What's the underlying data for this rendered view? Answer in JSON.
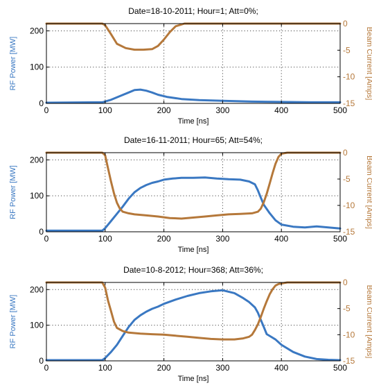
{
  "colors": {
    "rf_power": "#3a78c2",
    "beam_current": "#b5783a",
    "grid": "#4a4a4a"
  },
  "chart_data": [
    {
      "type": "line",
      "title": "Date=18-10-2011; Hour=1; Att=0%;",
      "xlabel": "Time [ns]",
      "ylabel_left": "RF Power [MW]",
      "ylabel_right": "Beam Current [Amps]",
      "xlim": [
        0,
        500
      ],
      "ylim_left": [
        0,
        220
      ],
      "ylim_right": [
        -15,
        0
      ],
      "x_ticks": [
        "0",
        "100",
        "200",
        "300",
        "400",
        "500"
      ],
      "y_ticks_left": [
        "0",
        "100",
        "200"
      ],
      "y_ticks_right": [
        "0",
        "-5",
        "-10",
        "-15"
      ],
      "grid": true,
      "series": [
        {
          "name": "RF Power",
          "axis": "left",
          "x": [
            0,
            95,
            110,
            125,
            140,
            150,
            160,
            170,
            180,
            190,
            205,
            230,
            260,
            300,
            350,
            400,
            450,
            500
          ],
          "y": [
            2,
            3,
            10,
            20,
            30,
            37,
            38,
            35,
            30,
            24,
            18,
            12,
            9,
            7,
            5,
            4,
            3,
            3
          ]
        },
        {
          "name": "Beam Current",
          "axis": "right",
          "x": [
            0,
            95,
            100,
            110,
            120,
            135,
            150,
            165,
            180,
            190,
            200,
            210,
            220,
            235,
            500
          ],
          "y": [
            0,
            0,
            -0.3,
            -2.0,
            -3.8,
            -4.6,
            -4.9,
            -4.9,
            -4.8,
            -4.2,
            -3.0,
            -1.6,
            -0.5,
            0,
            0
          ]
        }
      ]
    },
    {
      "type": "line",
      "title": "Date=16-11-2011; Hour=65; Att=54%;",
      "xlabel": "Time [ns]",
      "ylabel_left": "RF Power [MW]",
      "ylabel_right": "Beam Current [Amps]",
      "xlim": [
        0,
        500
      ],
      "ylim_left": [
        0,
        220
      ],
      "ylim_right": [
        -15,
        0
      ],
      "x_ticks": [
        "0",
        "100",
        "200",
        "300",
        "400",
        "500"
      ],
      "y_ticks_left": [
        "0",
        "100",
        "200"
      ],
      "y_ticks_right": [
        "0",
        "-5",
        "-10",
        "-15"
      ],
      "grid": true,
      "series": [
        {
          "name": "RF Power",
          "axis": "left",
          "x": [
            0,
            95,
            100,
            110,
            120,
            130,
            140,
            150,
            160,
            170,
            180,
            190,
            200,
            215,
            230,
            250,
            270,
            290,
            310,
            330,
            345,
            355,
            360,
            365,
            370,
            380,
            390,
            400,
            420,
            440,
            460,
            480,
            500
          ],
          "y": [
            3,
            3,
            10,
            30,
            50,
            70,
            92,
            110,
            122,
            130,
            136,
            140,
            145,
            148,
            150,
            150,
            151,
            148,
            146,
            145,
            140,
            132,
            115,
            95,
            75,
            52,
            32,
            20,
            14,
            12,
            15,
            12,
            9
          ]
        },
        {
          "name": "Beam Current",
          "axis": "right",
          "x": [
            0,
            95,
            100,
            105,
            110,
            115,
            120,
            125,
            130,
            140,
            150,
            170,
            190,
            210,
            230,
            250,
            270,
            290,
            310,
            330,
            350,
            360,
            365,
            370,
            375,
            380,
            385,
            390,
            395,
            400,
            410,
            500
          ],
          "y": [
            0,
            0,
            -0.5,
            -3.0,
            -5.5,
            -7.7,
            -9.5,
            -10.6,
            -11.2,
            -11.5,
            -11.7,
            -11.9,
            -12.1,
            -12.4,
            -12.5,
            -12.3,
            -12.1,
            -11.9,
            -11.7,
            -11.6,
            -11.5,
            -11.2,
            -10.6,
            -9.4,
            -7.8,
            -5.9,
            -3.9,
            -2.1,
            -0.8,
            -0.2,
            0,
            0
          ]
        }
      ]
    },
    {
      "type": "line",
      "title": "Date=10-8-2012; Hour=368; Att=36%;",
      "xlabel": "Time [ns]",
      "ylabel_left": "RF Power [MW]",
      "ylabel_right": "Beam Current [Amps]",
      "xlim": [
        0,
        500
      ],
      "ylim_left": [
        0,
        220
      ],
      "ylim_right": [
        -15,
        0
      ],
      "x_ticks": [
        "0",
        "100",
        "200",
        "300",
        "400",
        "500"
      ],
      "y_ticks_left": [
        "0",
        "100",
        "200"
      ],
      "y_ticks_right": [
        "0",
        "-5",
        "-10",
        "-15"
      ],
      "grid": true,
      "series": [
        {
          "name": "RF Power",
          "axis": "left",
          "x": [
            0,
            95,
            100,
            110,
            120,
            130,
            140,
            150,
            160,
            170,
            180,
            190,
            200,
            220,
            240,
            260,
            280,
            300,
            320,
            335,
            345,
            355,
            360,
            365,
            370,
            375,
            380,
            390,
            400,
            420,
            440,
            460,
            480,
            500
          ],
          "y": [
            2,
            2,
            8,
            25,
            45,
            70,
            95,
            115,
            128,
            138,
            146,
            152,
            160,
            172,
            182,
            190,
            195,
            198,
            190,
            176,
            165,
            150,
            135,
            115,
            95,
            75,
            70,
            60,
            45,
            25,
            12,
            5,
            3,
            2
          ]
        },
        {
          "name": "Beam Current",
          "axis": "right",
          "x": [
            0,
            95,
            100,
            105,
            110,
            115,
            120,
            130,
            140,
            160,
            180,
            200,
            220,
            240,
            260,
            280,
            300,
            320,
            335,
            345,
            350,
            355,
            360,
            365,
            370,
            375,
            380,
            385,
            390,
            395,
            400,
            410,
            500
          ],
          "y": [
            0,
            0,
            -1,
            -3.5,
            -5.5,
            -7.5,
            -8.7,
            -9.3,
            -9.6,
            -9.8,
            -9.9,
            -10.0,
            -10.2,
            -10.4,
            -10.6,
            -10.8,
            -10.9,
            -10.9,
            -10.7,
            -10.4,
            -10.0,
            -9.1,
            -8.0,
            -6.6,
            -5.0,
            -3.6,
            -2.3,
            -1.3,
            -0.6,
            -0.3,
            -0.2,
            0,
            0
          ]
        }
      ]
    }
  ]
}
